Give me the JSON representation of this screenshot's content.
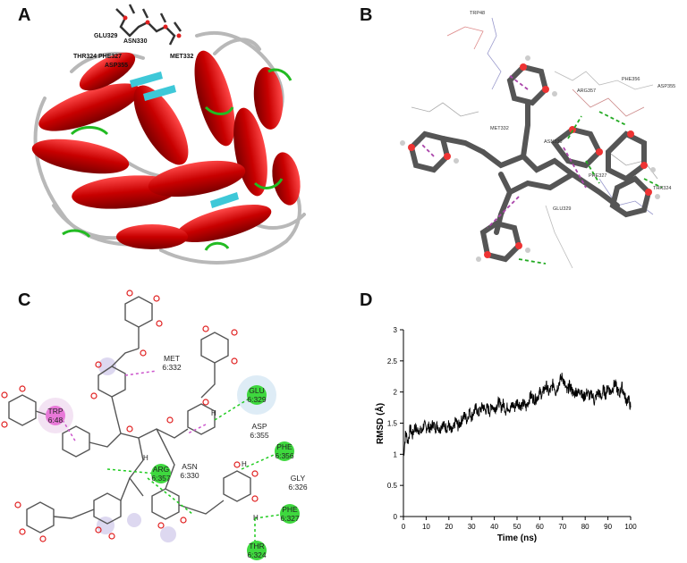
{
  "panels": {
    "a": {
      "label": "A",
      "residues": [
        "GLU329",
        "ASN330",
        "THR324",
        "PHE327",
        "ASP355",
        "MET332",
        "ARG357"
      ]
    },
    "b": {
      "label": "B",
      "residues": [
        "TRP48",
        "MET332",
        "ARG357",
        "PHE356",
        "ASP355",
        "ASN330",
        "PHE327",
        "GLU329",
        "THR324"
      ]
    },
    "c": {
      "label": "C",
      "residues": [
        {
          "name": "MET",
          "num": "6:332"
        },
        {
          "name": "TRP",
          "num": "6:48"
        },
        {
          "name": "GLU",
          "num": "6:329"
        },
        {
          "name": "ASP",
          "num": "6:355"
        },
        {
          "name": "PHE",
          "num": "6:356"
        },
        {
          "name": "ASN",
          "num": "6:330"
        },
        {
          "name": "ARG",
          "num": "6:357"
        },
        {
          "name": "GLY",
          "num": "6:326"
        },
        {
          "name": "PHE",
          "num": "6:327"
        },
        {
          "name": "THR",
          "num": "6:324"
        }
      ],
      "atom_h": "H"
    },
    "d": {
      "label": "D"
    }
  },
  "chart_data": {
    "type": "line",
    "title": "",
    "xlabel": "Time (ns)",
    "ylabel": "RMSD (Å)",
    "xlim": [
      0,
      100
    ],
    "ylim": [
      0,
      3
    ],
    "xticks": [
      "0",
      "10",
      "20",
      "30",
      "40",
      "50",
      "60",
      "70",
      "80",
      "90",
      "100"
    ],
    "yticks": [
      "0",
      "0.5",
      "1",
      "1.5",
      "2",
      "2.5",
      "3"
    ],
    "grid": false,
    "series": [
      {
        "color": "#000000",
        "x": [
          0,
          1,
          2,
          3,
          4,
          5,
          6,
          7,
          8,
          9,
          10,
          11,
          12,
          13,
          14,
          15,
          16,
          17,
          18,
          19,
          20,
          21,
          22,
          23,
          24,
          25,
          26,
          27,
          28,
          29,
          30,
          31,
          32,
          33,
          34,
          35,
          36,
          37,
          38,
          39,
          40,
          41,
          42,
          43,
          44,
          45,
          46,
          47,
          48,
          49,
          50,
          51,
          52,
          53,
          54,
          55,
          56,
          57,
          58,
          59,
          60,
          61,
          62,
          63,
          64,
          65,
          66,
          67,
          68,
          69,
          70,
          71,
          72,
          73,
          74,
          75,
          76,
          77,
          78,
          79,
          80,
          81,
          82,
          83,
          84,
          85,
          86,
          87,
          88,
          89,
          90,
          91,
          92,
          93,
          94,
          95,
          96,
          97,
          98,
          99,
          100
        ],
        "y": [
          0.95,
          1.35,
          1.2,
          1.42,
          1.3,
          1.45,
          1.38,
          1.4,
          1.35,
          1.48,
          1.42,
          1.45,
          1.4,
          1.5,
          1.42,
          1.47,
          1.38,
          1.5,
          1.45,
          1.42,
          1.48,
          1.35,
          1.4,
          1.55,
          1.45,
          1.5,
          1.58,
          1.62,
          1.55,
          1.7,
          1.6,
          1.68,
          1.75,
          1.65,
          1.72,
          1.78,
          1.7,
          1.75,
          1.68,
          1.8,
          1.72,
          1.78,
          1.85,
          1.75,
          1.82,
          1.7,
          1.78,
          1.72,
          1.8,
          1.75,
          1.85,
          1.8,
          1.78,
          1.82,
          1.75,
          1.85,
          1.95,
          1.9,
          1.88,
          1.92,
          2.0,
          1.95,
          2.05,
          2.1,
          1.98,
          2.05,
          2.15,
          2.0,
          2.1,
          2.2,
          2.25,
          2.12,
          2.0,
          2.1,
          2.05,
          1.95,
          2.02,
          1.98,
          2.05,
          1.9,
          1.95,
          2.0,
          1.92,
          1.98,
          1.85,
          1.95,
          2.0,
          1.9,
          2.05,
          1.95,
          2.1,
          2.0,
          2.05,
          2.15,
          2.05,
          1.95,
          2.1,
          2.0,
          1.85,
          1.9,
          1.75
        ]
      }
    ]
  }
}
